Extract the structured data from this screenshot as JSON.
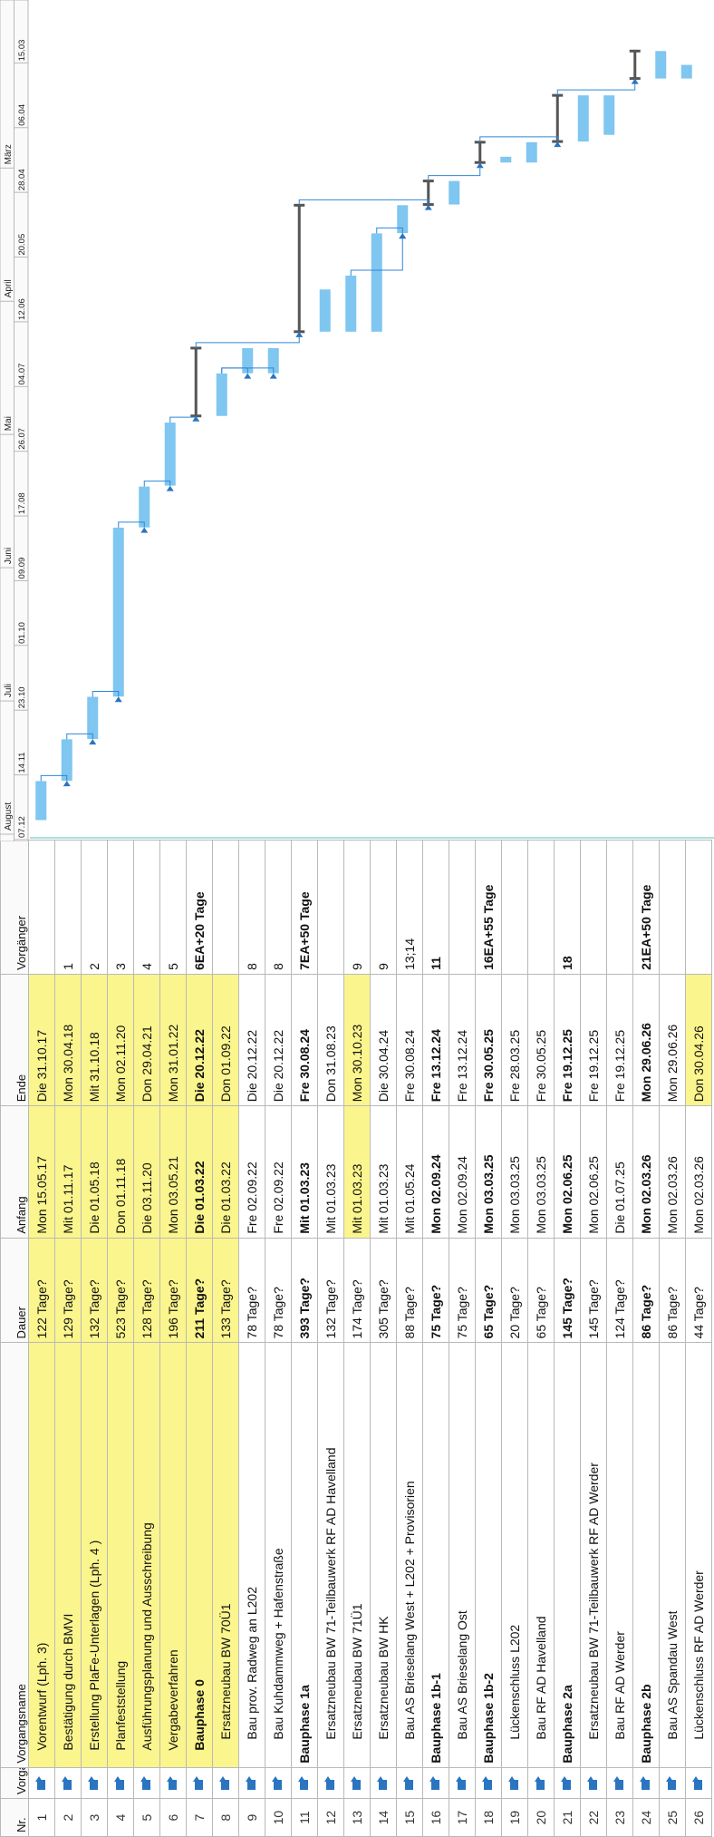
{
  "table": {
    "headers": {
      "nr": "Nr.",
      "mode": "Vorgangsm",
      "name": "Vorgangsname",
      "duration": "Dauer",
      "start": "Anfang",
      "end": "Ende",
      "predecessors": "Vorgänger"
    },
    "rows": [
      {
        "nr": "1",
        "name": "Vorentwurf (Lph. 3)",
        "duration": "122 Tage?",
        "start": "Mon 15.05.17",
        "end": "Die 31.10.17",
        "pred": ""
      },
      {
        "nr": "2",
        "name": "Bestätigung durch BMVI",
        "duration": "129 Tage?",
        "start": "Mit 01.11.17",
        "end": "Mon 30.04.18",
        "pred": "1"
      },
      {
        "nr": "3",
        "name": "Erstellung PlaFe-Unterlagen (Lph. 4 )",
        "duration": "132 Tage?",
        "start": "Die 01.05.18",
        "end": "Mit 31.10.18",
        "pred": "2"
      },
      {
        "nr": "4",
        "name": "Planfeststellung",
        "duration": "523 Tage?",
        "start": "Don 01.11.18",
        "end": "Mon 02.11.20",
        "pred": "3"
      },
      {
        "nr": "5",
        "name": "Ausführungsplanung und Ausschreibung",
        "duration": "128 Tage?",
        "start": "Die 03.11.20",
        "end": "Don 29.04.21",
        "pred": "4"
      },
      {
        "nr": "6",
        "name": "Vergabeverfahren",
        "duration": "196 Tage?",
        "start": "Mon 03.05.21",
        "end": "Mon 31.01.22",
        "pred": "5"
      },
      {
        "nr": "7",
        "name": "Bauphase 0",
        "duration": "211 Tage?",
        "start": "Die 01.03.22",
        "end": "Die 20.12.22",
        "pred": "6EA+20 Tage"
      },
      {
        "nr": "8",
        "name": "Ersatzneubau BW 70Ü1",
        "duration": "133 Tage?",
        "start": "Die 01.03.22",
        "end": "Don 01.09.22",
        "pred": ""
      },
      {
        "nr": "9",
        "name": "Bau prov. Radweg an L202",
        "duration": "78 Tage?",
        "start": "Fre 02.09.22",
        "end": "Die 20.12.22",
        "pred": "8"
      },
      {
        "nr": "10",
        "name": "Bau Kuhdammweg + Hafenstraße",
        "duration": "78 Tage?",
        "start": "Fre 02.09.22",
        "end": "Die 20.12.22",
        "pred": "8"
      },
      {
        "nr": "11",
        "name": "Bauphase 1a",
        "duration": "393 Tage?",
        "start": "Mit 01.03.23",
        "end": "Fre 30.08.24",
        "pred": "7EA+50 Tage"
      },
      {
        "nr": "12",
        "name": "Ersatzneubau BW 71-Teilbauwerk RF AD Havelland",
        "duration": "132 Tage?",
        "start": "Mit 01.03.23",
        "end": "Don 31.08.23",
        "pred": ""
      },
      {
        "nr": "13",
        "name": "Ersatzneubau BW 71Ü1",
        "duration": "174 Tage?",
        "start": "Mit 01.03.23",
        "end": "Mon 30.10.23",
        "pred": "9"
      },
      {
        "nr": "14",
        "name": "Ersatzneubau BW HK",
        "duration": "305 Tage?",
        "start": "Mit 01.03.23",
        "end": "Die 30.04.24",
        "pred": "9"
      },
      {
        "nr": "15",
        "name": "Bau AS Brieselang West + L202 + Provisorien",
        "duration": "88 Tage?",
        "start": "Mit 01.05.24",
        "end": "Fre 30.08.24",
        "pred": "13;14"
      },
      {
        "nr": "16",
        "name": "Bauphase 1b-1",
        "duration": "75 Tage?",
        "start": "Mon 02.09.24",
        "end": "Fre 13.12.24",
        "pred": "11"
      },
      {
        "nr": "17",
        "name": "Bau AS Brieselang Ost",
        "duration": "75 Tage?",
        "start": "Mon 02.09.24",
        "end": "Fre 13.12.24",
        "pred": ""
      },
      {
        "nr": "18",
        "name": "Bauphase 1b-2",
        "duration": "65 Tage?",
        "start": "Mon 03.03.25",
        "end": "Fre 30.05.25",
        "pred": "16EA+55 Tage"
      },
      {
        "nr": "19",
        "name": "Lückenschluss L202",
        "duration": "20 Tage?",
        "start": "Mon 03.03.25",
        "end": "Fre 28.03.25",
        "pred": ""
      },
      {
        "nr": "20",
        "name": "Bau RF AD Havelland",
        "duration": "65 Tage?",
        "start": "Mon 03.03.25",
        "end": "Fre 30.05.25",
        "pred": ""
      },
      {
        "nr": "21",
        "name": "Bauphase 2a",
        "duration": "145 Tage?",
        "start": "Mon 02.06.25",
        "end": "Fre 19.12.25",
        "pred": "18"
      },
      {
        "nr": "22",
        "name": "Ersatzneubau BW 71-Teilbauwerk RF AD Werder",
        "duration": "145 Tage?",
        "start": "Mon 02.06.25",
        "end": "Fre 19.12.25",
        "pred": ""
      },
      {
        "nr": "23",
        "name": "Bau RF AD Werder",
        "duration": "124 Tage?",
        "start": "Die 01.07.25",
        "end": "Fre 19.12.25",
        "pred": ""
      },
      {
        "nr": "24",
        "name": "Bauphase 2b",
        "duration": "86 Tage?",
        "start": "Mon 02.03.26",
        "end": "Mon 29.06.26",
        "pred": "21EA+50 Tage"
      },
      {
        "nr": "25",
        "name": "Bau AS Spandau West",
        "duration": "86 Tage?",
        "start": "Mon 02.03.26",
        "end": "Mon 29.06.26",
        "pred": ""
      },
      {
        "nr": "26",
        "name": "Lückenschluss RF AD Werder",
        "duration": "44 Tage?",
        "start": "Mon 02.03.26",
        "end": "Don 30.04.26",
        "pred": ""
      }
    ]
  },
  "timescale": {
    "top": [
      "August",
      "Juli",
      "Juni",
      "Mai",
      "April",
      "März"
    ],
    "bottom": [
      "07.12",
      "14.11",
      "23.10",
      "01.10",
      "09.09",
      "17.08",
      "26.07",
      "04.07",
      "12.06",
      "20.05",
      "28.04",
      "06.04",
      "15.03"
    ]
  },
  "colors": {
    "bar": "#7fc6f0",
    "summary": "#555555",
    "link": "#2f86d8",
    "highlight": "#fbf58d",
    "mode_icon": "#2a74c0"
  },
  "icons": {
    "task_mode": "auto-scheduled-task-icon"
  }
}
